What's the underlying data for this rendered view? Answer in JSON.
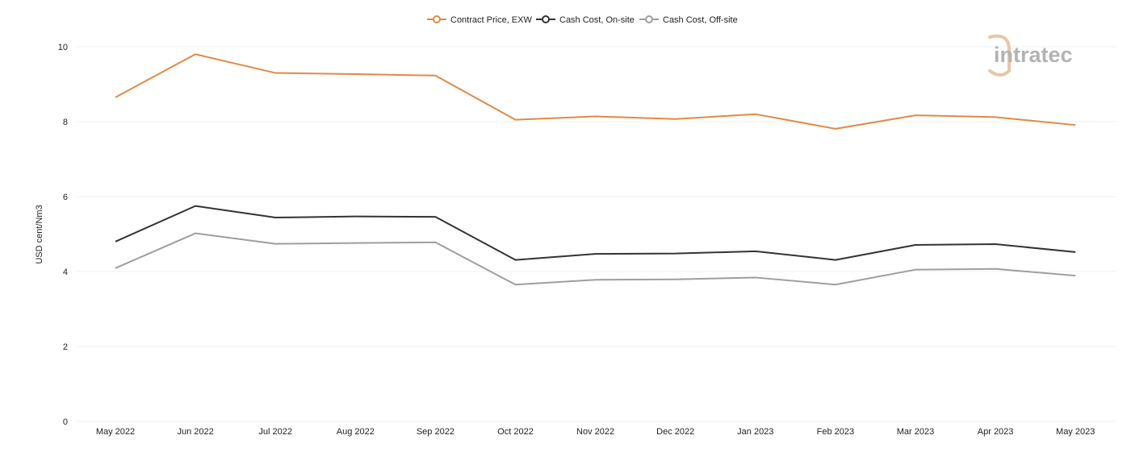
{
  "chart_data": {
    "type": "line",
    "title": "",
    "xlabel": "",
    "ylabel": "USD cent/Nm3",
    "ylim": [
      0,
      10
    ],
    "yticks": [
      0,
      2,
      4,
      6,
      8,
      10
    ],
    "grid": true,
    "legend_position": "top-center",
    "categories": [
      "May 2022",
      "Jun 2022",
      "Jul 2022",
      "Aug 2022",
      "Sep 2022",
      "Oct 2022",
      "Nov 2022",
      "Dec 2022",
      "Jan 2023",
      "Feb 2023",
      "Mar 2023",
      "Apr 2023",
      "May 2023"
    ],
    "series": [
      {
        "name": "Contract Price, EXW",
        "color": "#e08a45",
        "values": [
          8.65,
          9.8,
          9.3,
          9.27,
          9.23,
          8.05,
          8.14,
          8.07,
          8.2,
          7.81,
          8.17,
          8.12,
          7.91
        ]
      },
      {
        "name": "Cash Cost, On-site",
        "color": "#333333",
        "values": [
          4.8,
          5.75,
          5.44,
          5.47,
          5.46,
          4.31,
          4.47,
          4.48,
          4.54,
          4.31,
          4.71,
          4.73,
          4.52
        ]
      },
      {
        "name": "Cash Cost, Off-site",
        "color": "#9e9e9e",
        "values": [
          4.09,
          5.02,
          4.74,
          4.76,
          4.78,
          3.65,
          3.78,
          3.79,
          3.84,
          3.65,
          4.05,
          4.07,
          3.89
        ]
      }
    ]
  },
  "logo": {
    "text": "intratec",
    "accent_color": "#e8c7a6",
    "text_color": "#b3b3b3"
  }
}
